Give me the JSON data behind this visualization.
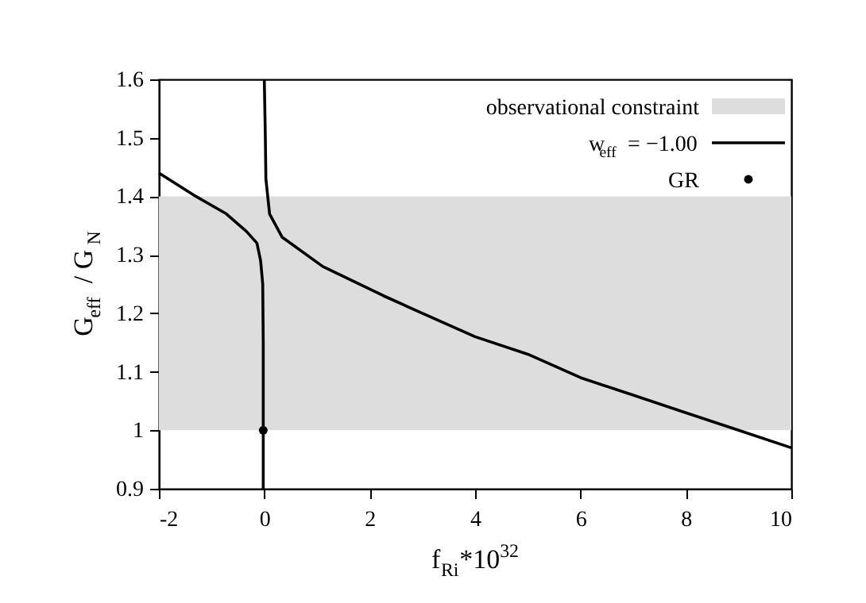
{
  "chart_data": {
    "type": "line",
    "xlabel": "f$_{Ri}$*10$^{32}$",
    "ylabel": "G$_{eff}$ / G$_{N}$",
    "xlim": [
      -2,
      10
    ],
    "xticks": [
      -2,
      0,
      2,
      4,
      6,
      8,
      10
    ],
    "ylim": [
      0.9,
      1.6
    ],
    "yticks": [
      0.9,
      1,
      1.1,
      1.2,
      1.3,
      1.4,
      1.5,
      1.6
    ],
    "grid": false,
    "legend": "top right",
    "line_style": "solid",
    "bands": [
      {
        "axis": "y",
        "from": 1.0,
        "to": 1.4,
        "label": "observational constraint",
        "color": "#dddddd"
      }
    ],
    "series": [
      {
        "name": "w$_{eff}$ = −1.00",
        "color": "#000000",
        "x": [
          -2,
          -1.3,
          -0.72,
          -0.34,
          -0.14,
          -0.07,
          -0.03,
          -0.02,
          -0.02
        ],
        "values": [
          1.44,
          1.4,
          1.37,
          1.34,
          1.32,
          1.29,
          1.25,
          1.15,
          0.9
        ]
      },
      {
        "color": "#000000",
        "x": [
          0.0,
          0.02,
          0.03,
          0.1,
          0.34,
          1.11,
          2.26,
          3,
          4,
          5,
          6,
          7,
          8,
          9,
          10
        ],
        "values": [
          1.6,
          1.5,
          1.43,
          1.37,
          1.33,
          1.28,
          1.23,
          1.2,
          1.16,
          1.13,
          1.09,
          1.06,
          1.03,
          1.0,
          0.97
        ]
      },
      {
        "name": "GR",
        "type": "scatter",
        "color": "#000000",
        "x": [
          -0.02
        ],
        "values": [
          1.0
        ]
      }
    ]
  }
}
